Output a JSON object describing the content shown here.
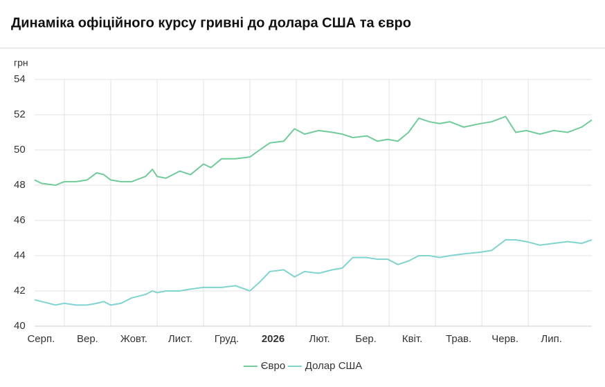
{
  "chart_data": {
    "type": "line",
    "title": "Динаміка офіційного курсу гривні до долара США та євро",
    "y_label": "грн",
    "x": [
      0.36,
      0.51,
      0.81,
      1,
      1.25,
      1.49,
      1.7,
      1.85,
      2,
      2.22,
      2.45,
      2.75,
      2.9,
      3,
      3.19,
      3.49,
      3.72,
      4,
      4.16,
      4.39,
      4.69,
      5,
      5.21,
      5.43,
      5.73,
      5.96,
      6.18,
      6.48,
      6.78,
      6.99,
      7.22,
      7.52,
      7.75,
      7.97,
      8.19,
      8.42,
      8.64,
      8.87,
      9.09,
      9.31,
      9.61,
      9.97,
      10.21,
      10.51,
      10.73,
      10.96,
      11.25,
      11.55,
      11.85,
      12.15,
      12.37
    ],
    "series": [
      {
        "name": "Євро",
        "color": "#6fcb9a",
        "values": [
          48.3,
          48.1,
          48.0,
          48.2,
          48.2,
          48.3,
          48.7,
          48.6,
          48.3,
          48.2,
          48.2,
          48.5,
          48.9,
          48.5,
          48.4,
          48.8,
          48.6,
          49.2,
          49.0,
          49.5,
          49.5,
          49.6,
          50.0,
          50.4,
          50.5,
          51.2,
          50.9,
          51.1,
          51.0,
          50.9,
          50.7,
          50.8,
          50.5,
          50.6,
          50.5,
          51.0,
          51.8,
          51.6,
          51.5,
          51.6,
          51.3,
          51.5,
          51.6,
          51.9,
          51.0,
          51.1,
          50.9,
          51.1,
          51.0,
          51.3,
          51.7
        ]
      },
      {
        "name": "Долар США",
        "color": "#7fd4cf",
        "values": [
          41.5,
          41.4,
          41.2,
          41.3,
          41.2,
          41.2,
          41.3,
          41.4,
          41.2,
          41.3,
          41.6,
          41.8,
          42.0,
          41.9,
          42.0,
          42.0,
          42.1,
          42.2,
          42.2,
          42.2,
          42.3,
          42.0,
          42.5,
          43.1,
          43.2,
          42.8,
          43.1,
          43.0,
          43.2,
          43.3,
          43.9,
          43.9,
          43.8,
          43.8,
          43.5,
          43.7,
          44.0,
          44.0,
          43.9,
          44.0,
          44.1,
          44.2,
          44.3,
          44.9,
          44.9,
          44.8,
          44.6,
          44.7,
          44.8,
          44.7,
          44.9
        ]
      }
    ],
    "xlim": [
      0.36,
      12.37
    ],
    "xticks": [
      {
        "value": 0,
        "label": "Серп."
      },
      {
        "value": 1,
        "label": "Вер."
      },
      {
        "value": 2,
        "label": "Жовт."
      },
      {
        "value": 3,
        "label": "Лист."
      },
      {
        "value": 4,
        "label": "Груд."
      },
      {
        "value": 5,
        "label": "2026"
      },
      {
        "value": 6,
        "label": "Лют."
      },
      {
        "value": 7,
        "label": "Бер."
      },
      {
        "value": 8,
        "label": "Квіт."
      },
      {
        "value": 9,
        "label": "Трав."
      },
      {
        "value": 10,
        "label": "Черв."
      },
      {
        "value": 11,
        "label": "Лип."
      }
    ],
    "ylim": [
      40,
      54
    ],
    "yticks": [
      40,
      42,
      44,
      46,
      48,
      50,
      52,
      54
    ],
    "grid": true,
    "legend": "bottom"
  }
}
